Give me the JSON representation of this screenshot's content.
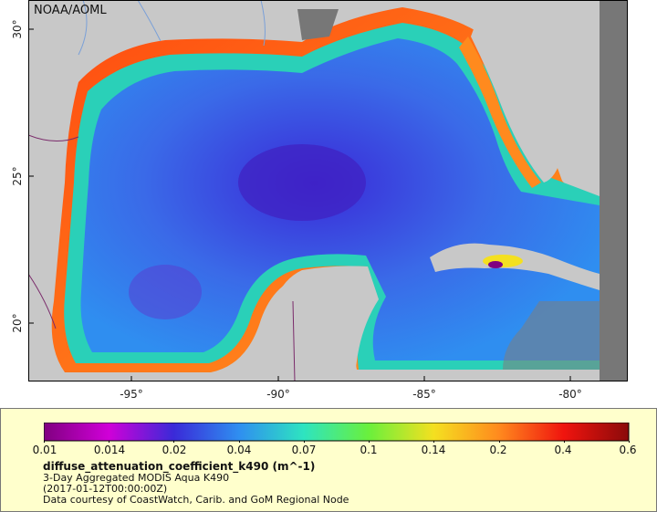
{
  "map": {
    "credit": "NOAA/AOML",
    "colors": {
      "land": "#c8c8c8",
      "nodata": "#777777",
      "rivers": "#7aa0d8",
      "borders": "#7a2a6a",
      "frame": "#000000"
    },
    "lat_ticks": [
      "30°",
      "25°",
      "20°"
    ],
    "lon_ticks": [
      "-95°",
      "-90°",
      "-85°",
      "-80°"
    ]
  },
  "legend": {
    "variable": "diffuse_attenuation_coefficient_k490 (m^-1)",
    "line1": "3-Day Aggregated MODIS Aqua K490",
    "line2": "(2017-01-12T00:00:00Z)",
    "line3": "Data courtesy of CoastWatch, Carib. and GoM Regional Node",
    "colorbar_labels": [
      "0.01",
      "0.014",
      "0.02",
      "0.04",
      "0.07",
      "0.1",
      "0.14",
      "0.2",
      "0.4",
      "0.6"
    ],
    "colorbar_colors": [
      "#800080",
      "#d000d8",
      "#3a2ad8",
      "#2f8ef0",
      "#2ee4c0",
      "#6af03c",
      "#f4e020",
      "#ff8a1e",
      "#f0140e",
      "#8a0a0a"
    ]
  }
}
